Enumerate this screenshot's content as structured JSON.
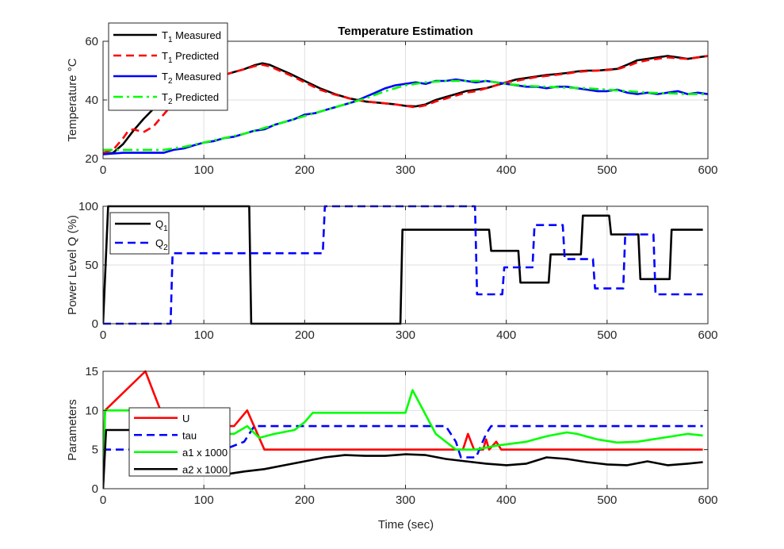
{
  "figure": {
    "background": "#ffffff"
  },
  "xlabel": "Time (sec)",
  "colors": {
    "black": "#000000",
    "red": "#ff0000",
    "blue": "#0000ff",
    "green": "#00ff00",
    "axis": "#262626",
    "grid": "#dfdfdf"
  },
  "chart_data": [
    {
      "type": "line",
      "title": "Temperature Estimation",
      "ylabel": "Temperature °C",
      "xlim": [
        0,
        600
      ],
      "ylim": [
        20,
        60
      ],
      "xticks": [
        0,
        100,
        200,
        300,
        400,
        500,
        600
      ],
      "yticks": [
        20,
        40,
        60
      ],
      "grid": true,
      "legend_position": "top-left",
      "series": [
        {
          "name": "T1 Measured",
          "label_main": "T",
          "label_sub": "1",
          "label_rest": " Measured",
          "color": "#000000",
          "dash": "solid",
          "x": [
            0,
            10,
            20,
            30,
            40,
            50,
            60,
            70,
            80,
            90,
            100,
            110,
            120,
            130,
            140,
            150,
            158,
            165,
            175,
            185,
            200,
            215,
            230,
            245,
            260,
            275,
            290,
            300,
            310,
            320,
            330,
            340,
            350,
            360,
            370,
            380,
            390,
            400,
            410,
            420,
            430,
            440,
            450,
            460,
            470,
            480,
            490,
            500,
            510,
            520,
            530,
            540,
            550,
            560,
            570,
            580,
            590,
            600
          ],
          "y": [
            21.5,
            22,
            25,
            29.5,
            33.5,
            37,
            40,
            42.5,
            44,
            45.5,
            46.5,
            47.5,
            48.5,
            49.5,
            50.5,
            51.8,
            52.5,
            52,
            50.5,
            49,
            46.5,
            44,
            42,
            40.5,
            39.5,
            39,
            38.5,
            38,
            37.8,
            38.5,
            40,
            41,
            42,
            43,
            43.5,
            44,
            45,
            46,
            47,
            47.5,
            48,
            48.5,
            48.8,
            49.2,
            49.7,
            50,
            50,
            50.3,
            50.6,
            52,
            53.5,
            54,
            54.5,
            55,
            54.5,
            54,
            54.5,
            55
          ]
        },
        {
          "name": "T1 Predicted",
          "label_main": "T",
          "label_sub": "1",
          "label_rest": " Predicted",
          "color": "#ff0000",
          "dash": "dashed",
          "x": [
            0,
            10,
            20,
            25,
            30,
            35,
            40,
            50,
            60,
            70,
            80,
            90,
            100,
            110,
            120,
            130,
            140,
            150,
            158,
            165,
            175,
            185,
            200,
            215,
            230,
            245,
            260,
            275,
            290,
            300,
            310,
            320,
            330,
            340,
            350,
            360,
            370,
            380,
            390,
            400,
            410,
            420,
            430,
            440,
            450,
            460,
            470,
            480,
            490,
            500,
            510,
            520,
            530,
            540,
            550,
            560,
            570,
            580,
            590,
            600
          ],
          "y": [
            22,
            23,
            27,
            29.5,
            30,
            29.5,
            29,
            31,
            35,
            39,
            42,
            44.5,
            46,
            47.5,
            48.5,
            49.5,
            50.5,
            51.5,
            52,
            51.5,
            50,
            48.5,
            46,
            43.5,
            41.8,
            40.5,
            39.5,
            39,
            38.5,
            38,
            37.5,
            38.2,
            39.5,
            40.5,
            41.5,
            42.5,
            43,
            44,
            45,
            46,
            46.5,
            47.2,
            47.8,
            48.2,
            48.6,
            49,
            49.5,
            49.8,
            50,
            50.2,
            50.5,
            51.5,
            52.8,
            53.5,
            54,
            54.5,
            54.2,
            54,
            54.5,
            55
          ]
        },
        {
          "name": "T2 Measured",
          "label_main": "T",
          "label_sub": "2",
          "label_rest": " Measured",
          "color": "#0000ff",
          "dash": "solid",
          "x": [
            0,
            20,
            40,
            60,
            70,
            80,
            90,
            100,
            110,
            120,
            130,
            140,
            150,
            160,
            170,
            180,
            190,
            200,
            210,
            220,
            230,
            240,
            250,
            260,
            270,
            280,
            290,
            300,
            310,
            320,
            330,
            340,
            350,
            360,
            370,
            380,
            390,
            400,
            410,
            420,
            430,
            440,
            450,
            460,
            470,
            480,
            490,
            500,
            510,
            520,
            530,
            540,
            550,
            560,
            570,
            580,
            590,
            600
          ],
          "y": [
            21.5,
            22,
            22,
            22,
            23,
            23.5,
            24.5,
            25.5,
            26,
            27,
            27.5,
            28.5,
            29.5,
            30,
            31.5,
            32.5,
            33.5,
            35,
            35.5,
            36.5,
            37.5,
            38.5,
            39.5,
            41,
            42.5,
            44,
            45,
            45.5,
            46,
            45.5,
            46.5,
            46.5,
            47,
            46.5,
            46,
            46.5,
            46,
            45.5,
            45,
            44.5,
            44.5,
            44,
            44.5,
            44.5,
            44,
            43.5,
            43,
            43,
            43.5,
            42.5,
            42,
            42.5,
            42,
            42.5,
            43,
            42,
            42.5,
            42
          ]
        },
        {
          "name": "T2 Predicted",
          "label_main": "T",
          "label_sub": "2",
          "label_rest": " Predicted",
          "color": "#00ff00",
          "dash": "dashdot",
          "x": [
            0,
            20,
            40,
            60,
            80,
            100,
            120,
            140,
            160,
            180,
            200,
            220,
            240,
            260,
            280,
            300,
            320,
            340,
            360,
            380,
            400,
            420,
            440,
            460,
            480,
            500,
            520,
            540,
            560,
            580,
            600
          ],
          "y": [
            23,
            23,
            23,
            23,
            24,
            25.5,
            27,
            28.5,
            30.5,
            32.5,
            34.5,
            36.5,
            38.5,
            40.5,
            43,
            45,
            46,
            46.5,
            46.5,
            46.5,
            45.5,
            44.8,
            44.5,
            44.2,
            44,
            43.5,
            43,
            42.5,
            42.3,
            42,
            42
          ]
        }
      ]
    },
    {
      "type": "line",
      "title": "",
      "ylabel": "Power Level Q (%)",
      "xlim": [
        0,
        600
      ],
      "ylim": [
        0,
        100
      ],
      "xticks": [
        0,
        100,
        200,
        300,
        400,
        500,
        600
      ],
      "yticks": [
        0,
        50,
        100
      ],
      "grid": true,
      "legend_position": "top-left",
      "series": [
        {
          "name": "Q1",
          "label_main": "Q",
          "label_sub": "1",
          "label_rest": "",
          "color": "#000000",
          "dash": "solid",
          "x": [
            0,
            5,
            145,
            147,
            295,
            297,
            383,
            385,
            412,
            414,
            442,
            444,
            470,
            472,
            474,
            476,
            502,
            504,
            531,
            533,
            562,
            564,
            595
          ],
          "y": [
            0,
            100,
            100,
            0,
            0,
            80,
            80,
            62,
            62,
            35,
            35,
            59,
            59,
            59,
            59,
            92,
            92,
            76,
            76,
            38,
            38,
            80,
            80
          ]
        },
        {
          "name": "Q2",
          "label_main": "Q",
          "label_sub": "2",
          "label_rest": "",
          "color": "#0000ff",
          "dash": "dashed",
          "x": [
            0,
            67,
            69,
            218,
            220,
            369,
            371,
            396,
            398,
            426,
            428,
            456,
            458,
            486,
            488,
            516,
            518,
            546,
            548,
            595
          ],
          "y": [
            0,
            0,
            60,
            60,
            100,
            100,
            25,
            25,
            48,
            48,
            84,
            84,
            55,
            55,
            30,
            30,
            76,
            76,
            25,
            25
          ]
        }
      ]
    },
    {
      "type": "line",
      "title": "",
      "ylabel": "Parameters",
      "xlim": [
        0,
        600
      ],
      "ylim": [
        0,
        15
      ],
      "xticks": [
        0,
        100,
        200,
        300,
        400,
        500,
        600
      ],
      "yticks": [
        0,
        5,
        10,
        15
      ],
      "grid": true,
      "legend_position": "left",
      "series": [
        {
          "name": "U",
          "label_main": "U",
          "label_sub": "",
          "label_rest": "",
          "color": "#ff0000",
          "dash": "solid",
          "x": [
            0,
            2,
            42,
            57,
            60,
            130,
            143,
            160,
            350,
            357,
            362,
            368,
            377,
            380,
            383,
            390,
            395,
            400,
            595
          ],
          "y": [
            0,
            10,
            15,
            10,
            8,
            8,
            10,
            5,
            5,
            5,
            7,
            5,
            5,
            6.3,
            5,
            6,
            5,
            5,
            5
          ]
        },
        {
          "name": "tau",
          "label_main": "tau",
          "label_sub": "",
          "label_rest": "",
          "color": "#0000ff",
          "dash": "dashed",
          "x": [
            0,
            120,
            140,
            150,
            340,
            350,
            355,
            370,
            380,
            385,
            595
          ],
          "y": [
            5,
            5,
            6,
            8,
            8,
            6,
            4,
            4,
            7,
            8,
            8
          ]
        },
        {
          "name": "a1 x 1000",
          "label_main": "a1 x 1000",
          "label_sub": "",
          "label_rest": "",
          "color": "#00ff00",
          "dash": "solid",
          "x": [
            0,
            2,
            25,
            60,
            100,
            130,
            143,
            155,
            170,
            190,
            200,
            208,
            300,
            307,
            330,
            350,
            370,
            390,
            420,
            440,
            460,
            470,
            490,
            510,
            530,
            560,
            580,
            595
          ],
          "y": [
            0,
            10,
            10,
            10,
            7,
            7,
            8,
            6.5,
            7,
            7.5,
            8.5,
            9.7,
            9.7,
            12.6,
            7,
            5,
            5,
            5.5,
            6,
            6.7,
            7.2,
            7,
            6.3,
            5.9,
            6,
            6.6,
            7,
            6.8
          ]
        },
        {
          "name": "a2 x 1000",
          "label_main": "a2 x 1000",
          "label_sub": "",
          "label_rest": "",
          "color": "#000000",
          "dash": "solid",
          "x": [
            0,
            3,
            40,
            60,
            80,
            120,
            140,
            160,
            180,
            200,
            220,
            240,
            260,
            280,
            300,
            320,
            340,
            360,
            380,
            400,
            420,
            440,
            460,
            480,
            500,
            520,
            540,
            560,
            580,
            595
          ],
          "y": [
            0,
            7.5,
            7.5,
            4,
            2,
            1.8,
            2.2,
            2.5,
            3,
            3.5,
            4,
            4.3,
            4.2,
            4.2,
            4.4,
            4.3,
            3.8,
            3.5,
            3.2,
            3,
            3.2,
            4,
            3.8,
            3.4,
            3.1,
            3,
            3.5,
            3,
            3.2,
            3.4
          ]
        }
      ]
    }
  ]
}
